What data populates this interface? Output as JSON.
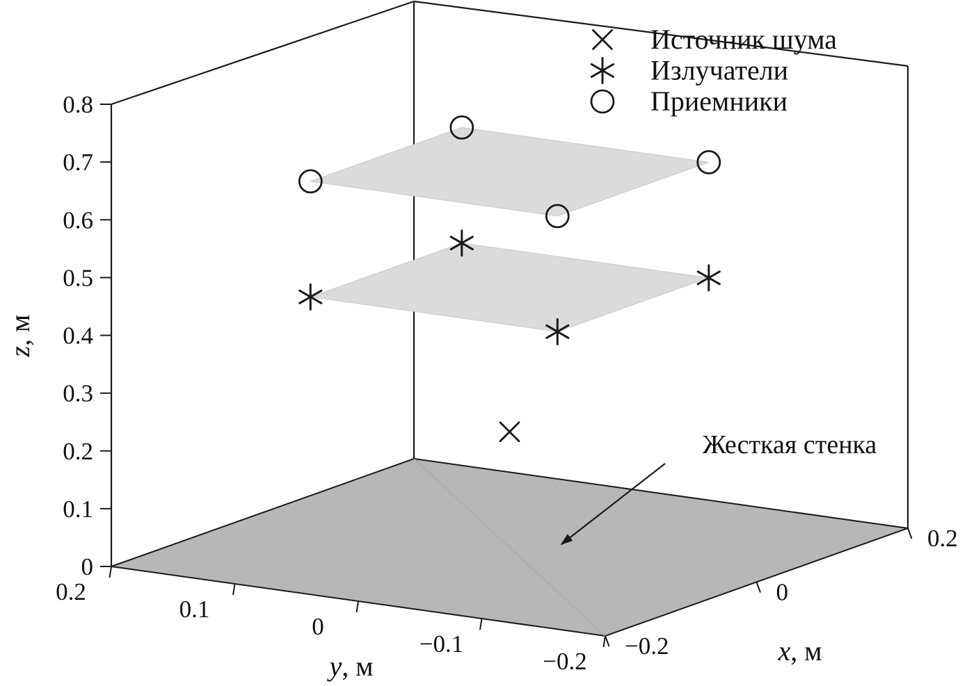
{
  "colors": {
    "marker": "#1a1a1a",
    "line": "#1a1a1a",
    "wall_fill": "#b7b7b7",
    "plane_fill": "#dbdbdb",
    "plane_edge": "#c9c9c9"
  },
  "chart_data": {
    "type": "scatter",
    "projection": "3d",
    "title": "",
    "axes": {
      "x": {
        "var": "x",
        "unit": ", м",
        "range": [
          -0.2,
          0.2
        ],
        "ticks": [
          {
            "v": -0.2,
            "label": "−0.2"
          },
          {
            "v": 0,
            "label": "0"
          },
          {
            "v": 0.2,
            "label": "0.2"
          }
        ]
      },
      "y": {
        "var": "y",
        "unit": ", м",
        "range": [
          -0.2,
          0.2
        ],
        "ticks": [
          {
            "v": 0.2,
            "label": "0.2"
          },
          {
            "v": 0.1,
            "label": "0.1"
          },
          {
            "v": 0,
            "label": "0"
          },
          {
            "v": -0.1,
            "label": "−0.1"
          },
          {
            "v": -0.2,
            "label": "−0.2"
          }
        ]
      },
      "z": {
        "var": "z",
        "unit": ", м",
        "range": [
          0,
          0.8
        ],
        "ticks": [
          {
            "v": 0,
            "label": "0"
          },
          {
            "v": 0.1,
            "label": "0.1"
          },
          {
            "v": 0.2,
            "label": "0.2"
          },
          {
            "v": 0.3,
            "label": "0.3"
          },
          {
            "v": 0.4,
            "label": "0.4"
          },
          {
            "v": 0.5,
            "label": "0.5"
          },
          {
            "v": 0.6,
            "label": "0.6"
          },
          {
            "v": 0.7,
            "label": "0.7"
          },
          {
            "v": 0.8,
            "label": "0.8"
          }
        ]
      }
    },
    "series": [
      {
        "key": "noise-source",
        "name": "Источник шума",
        "marker": "cross",
        "points": [
          [
            0,
            0,
            0.2
          ]
        ]
      },
      {
        "key": "emitters",
        "name": "Излучатели",
        "marker": "asterisk",
        "points": [
          [
            -0.1,
            0.1,
            0.45
          ],
          [
            0.1,
            0.1,
            0.45
          ],
          [
            0.1,
            -0.1,
            0.45
          ],
          [
            -0.1,
            -0.1,
            0.45
          ]
        ]
      },
      {
        "key": "receivers",
        "name": "Приемники",
        "marker": "circle",
        "points": [
          [
            -0.1,
            0.1,
            0.65
          ],
          [
            0.1,
            0.1,
            0.65
          ],
          [
            0.1,
            -0.1,
            0.65
          ],
          [
            -0.1,
            -0.1,
            0.65
          ]
        ]
      }
    ],
    "planes": [
      {
        "key": "rigid-wall",
        "z": 0,
        "x": [
          -0.2,
          0.2
        ],
        "y": [
          -0.2,
          0.2
        ],
        "kind": "floor"
      },
      {
        "key": "emitters-plane",
        "z": 0.45,
        "x": [
          -0.1,
          0.1
        ],
        "y": [
          -0.1,
          0.1
        ],
        "kind": "array"
      },
      {
        "key": "receivers-plane",
        "z": 0.65,
        "x": [
          -0.1,
          0.1
        ],
        "y": [
          -0.1,
          0.1
        ],
        "kind": "array"
      }
    ],
    "legend": {
      "position": "top-right",
      "items": [
        {
          "marker": "cross",
          "label": "Источник шума"
        },
        {
          "marker": "asterisk",
          "label": "Излучатели"
        },
        {
          "marker": "circle",
          "label": "Приемники"
        }
      ]
    },
    "annotation": {
      "text": "Жесткая стенка",
      "target": "rigid-wall"
    }
  }
}
